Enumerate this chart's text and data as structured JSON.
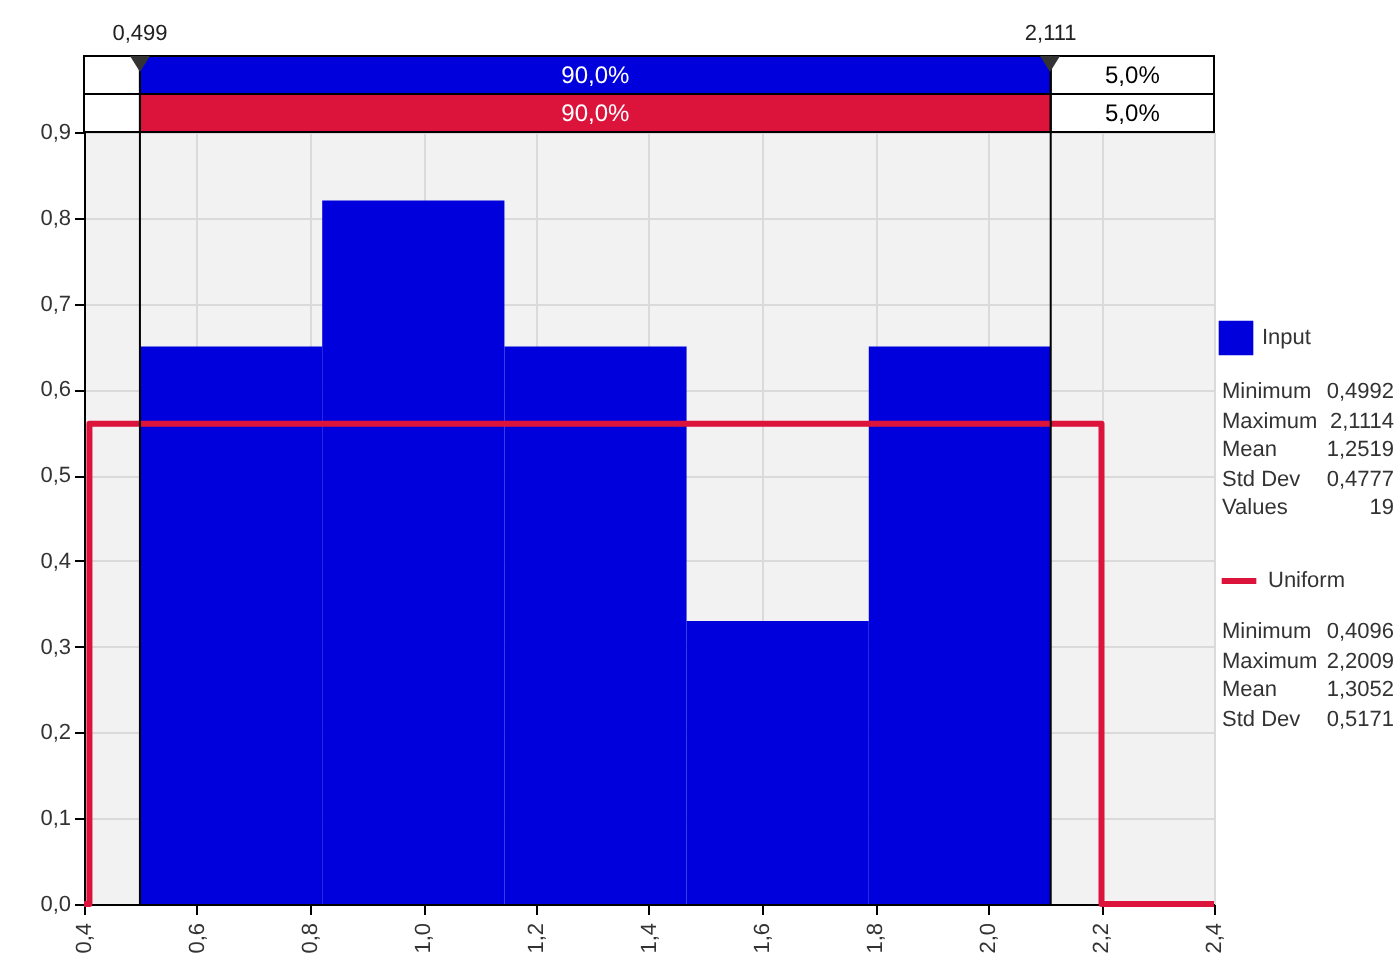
{
  "chart_data": {
    "type": "histogram",
    "bins": [
      0.4992,
      0.8216,
      1.1441,
      1.4665,
      1.789,
      2.1114
    ],
    "series": [
      {
        "name": "Input",
        "color": "#0000dd",
        "values": [
          0.65,
          0.82,
          0.65,
          0.33,
          0.65
        ]
      },
      {
        "name": "Uniform",
        "type": "step",
        "color": "#dc143c",
        "x": [
          0.4,
          0.4096,
          2.2009,
          2.4
        ],
        "values": [
          0,
          0.56,
          0,
          0
        ]
      }
    ],
    "xlim": [
      0.4,
      2.4
    ],
    "ylim": [
      0,
      0.9
    ],
    "xticks": [
      {
        "value": 0.4,
        "label": "0,4"
      },
      {
        "value": 0.6,
        "label": "0,6"
      },
      {
        "value": 0.8,
        "label": "0,8"
      },
      {
        "value": 1.0,
        "label": "1,0"
      },
      {
        "value": 1.2,
        "label": "1,2"
      },
      {
        "value": 1.4,
        "label": "1,4"
      },
      {
        "value": 1.6,
        "label": "1,6"
      },
      {
        "value": 1.8,
        "label": "1,8"
      },
      {
        "value": 2.0,
        "label": "2,0"
      },
      {
        "value": 2.2,
        "label": "2,2"
      },
      {
        "value": 2.4,
        "label": "2,4"
      }
    ],
    "yticks": [
      {
        "value": 0,
        "label": "0,0"
      },
      {
        "value": 0.1,
        "label": "0,1"
      },
      {
        "value": 0.2,
        "label": "0,2"
      },
      {
        "value": 0.3,
        "label": "0,3"
      },
      {
        "value": 0.4,
        "label": "0,4"
      },
      {
        "value": 0.5,
        "label": "0,5"
      },
      {
        "value": 0.6,
        "label": "0,6"
      },
      {
        "value": 0.7,
        "label": "0,7"
      },
      {
        "value": 0.8,
        "label": "0,8"
      },
      {
        "value": 0.9,
        "label": "0,9"
      }
    ],
    "ref_lines": [
      {
        "axis": "x",
        "value": 0.499,
        "label": "0,499"
      },
      {
        "axis": "x",
        "value": 2.111,
        "label": "2,111"
      }
    ],
    "annotations": [
      "90,0%",
      "5,0%",
      "90,0%",
      "5,0%",
      "Minimum 0,4992",
      "Maximum 2,1114",
      "Mean 1,2519",
      "Std Dev 0,4777",
      "Values 19",
      "Minimum 0,4096",
      "Maximum 2,2009",
      "Mean 1,3052",
      "Std Dev 0,5171"
    ],
    "grid": true,
    "legend": "right"
  }
}
